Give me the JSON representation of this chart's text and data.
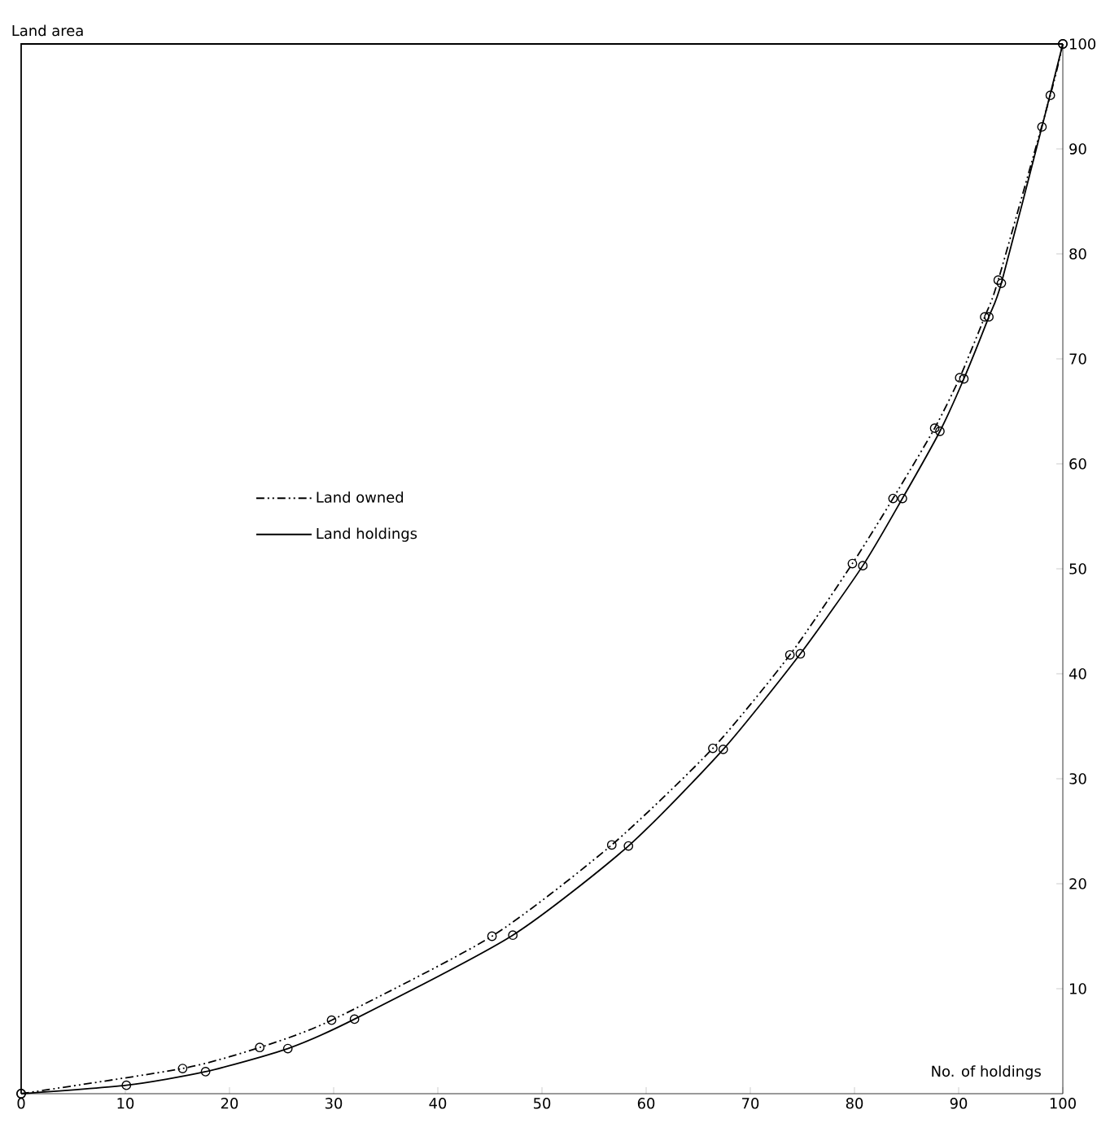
{
  "chart_data": {
    "type": "line",
    "xlabel": "No. of holdings",
    "ylabel": "Land area",
    "xlim": [
      0,
      100
    ],
    "ylim": [
      0,
      100
    ],
    "xticks": [
      0,
      10,
      20,
      30,
      40,
      50,
      60,
      70,
      80,
      90,
      100
    ],
    "yticks": [
      10,
      20,
      30,
      40,
      50,
      60,
      70,
      80,
      90,
      100
    ],
    "grid": false,
    "legend": "left",
    "marker": "circle",
    "series": [
      {
        "name": "Land owned",
        "color": "#000000",
        "line_style": "dashed",
        "x": [
          0,
          15.5,
          22.9,
          29.8,
          45.2,
          56.7,
          66.4,
          73.8,
          79.8,
          83.7,
          87.7,
          90.1,
          92.5,
          93.8,
          98.8,
          100
        ],
        "values": [
          0,
          2.4,
          4.4,
          7.0,
          15.0,
          23.7,
          32.9,
          41.8,
          50.5,
          56.7,
          63.4,
          68.2,
          74.0,
          77.5,
          95.1,
          100
        ]
      },
      {
        "name": "Land holdings",
        "color": "#000000",
        "line_style": "solid",
        "x": [
          0,
          10.1,
          17.7,
          25.6,
          32.0,
          47.2,
          58.3,
          67.4,
          74.8,
          80.8,
          84.6,
          88.2,
          90.5,
          92.9,
          94.1,
          98.0,
          100
        ],
        "values": [
          0,
          0.8,
          2.1,
          4.3,
          7.1,
          15.1,
          23.6,
          32.8,
          41.9,
          50.3,
          56.7,
          63.1,
          68.1,
          74.0,
          77.2,
          92.1,
          100
        ]
      }
    ]
  }
}
